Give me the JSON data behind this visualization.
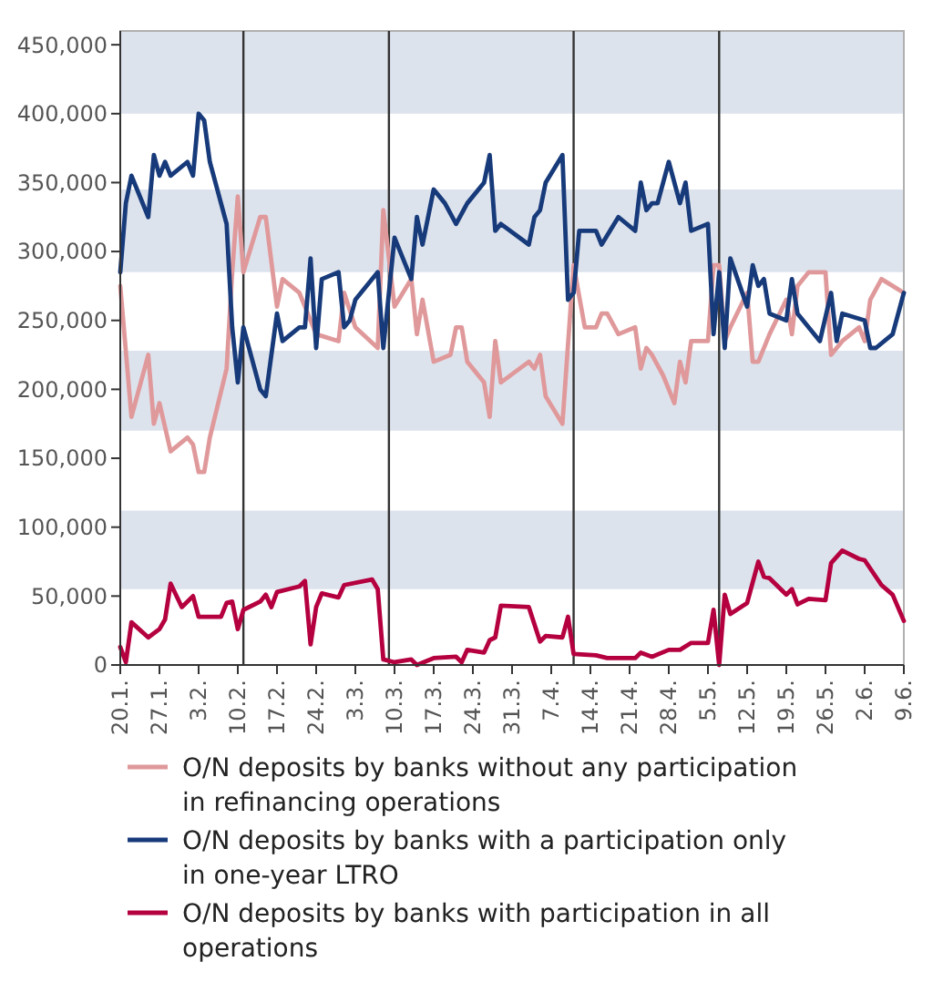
{
  "chart_data": {
    "type": "line",
    "xlim": [
      "--01-20",
      "--06-09"
    ],
    "ylim": [
      0,
      460000
    ],
    "xticks": [
      {
        "value": "--01-20",
        "label": "20.1."
      },
      {
        "value": "--01-27",
        "label": "27.1."
      },
      {
        "value": "--02-03",
        "label": "3.2."
      },
      {
        "value": "--02-10",
        "label": "10.2."
      },
      {
        "value": "--02-17",
        "label": "17.2."
      },
      {
        "value": "--02-24",
        "label": "24.2."
      },
      {
        "value": "--03-03",
        "label": "3.3."
      },
      {
        "value": "--03-10",
        "label": "10.3."
      },
      {
        "value": "--03-17",
        "label": "17.3."
      },
      {
        "value": "--03-24",
        "label": "24.3."
      },
      {
        "value": "--03-31",
        "label": "31.3."
      },
      {
        "value": "--04-07",
        "label": "7.4."
      },
      {
        "value": "--04-14",
        "label": "14.4."
      },
      {
        "value": "--04-21",
        "label": "21.4."
      },
      {
        "value": "--04-28",
        "label": "28.4."
      },
      {
        "value": "--05-05",
        "label": "5.5."
      },
      {
        "value": "--05-12",
        "label": "12.5."
      },
      {
        "value": "--05-19",
        "label": "19.5."
      },
      {
        "value": "--05-26",
        "label": "26.5."
      },
      {
        "value": "--06-02",
        "label": "2.6."
      },
      {
        "value": "--06-09",
        "label": "9.6."
      }
    ],
    "yticks": [
      {
        "value": 0,
        "label": "0"
      },
      {
        "value": 50000,
        "label": "50,000"
      },
      {
        "value": 100000,
        "label": "100,000"
      },
      {
        "value": 150000,
        "label": "150,000"
      },
      {
        "value": 200000,
        "label": "200,000"
      },
      {
        "value": 250000,
        "label": "250,000"
      },
      {
        "value": 300000,
        "label": "300,000"
      },
      {
        "value": 350000,
        "label": "350,000"
      },
      {
        "value": 400000,
        "label": "400,000"
      },
      {
        "value": 450000,
        "label": "450,000"
      }
    ],
    "bands": [
      {
        "axis": "y",
        "from": 55000,
        "to": 112000,
        "color": "#dde3ed"
      },
      {
        "axis": "y",
        "from": 170000,
        "to": 228000,
        "color": "#dde3ed"
      },
      {
        "axis": "y",
        "from": 285000,
        "to": 345000,
        "color": "#dde3ed"
      },
      {
        "axis": "y",
        "from": 400000,
        "to": 460000,
        "color": "#dde3ed"
      }
    ],
    "ref_lines": [
      {
        "axis": "x",
        "value": "--02-11",
        "color": "#333333"
      },
      {
        "axis": "x",
        "value": "--03-09",
        "color": "#333333"
      },
      {
        "axis": "x",
        "value": "--04-11",
        "color": "#333333"
      },
      {
        "axis": "x",
        "value": "--05-07",
        "color": "#333333"
      }
    ],
    "legend": "bottom",
    "line_style": "solid",
    "series": [
      {
        "name": "O/N deposits by banks without any participation in refinancing operations",
        "color": "#e0999b",
        "x": [
          "--01-20",
          "--01-22",
          "--01-25",
          "--01-26",
          "--01-27",
          "--01-29",
          "--02-01",
          "--02-02",
          "--02-03",
          "--02-04",
          "--02-05",
          "--02-08",
          "--02-09",
          "--02-10",
          "--02-11",
          "--02-14",
          "--02-15",
          "--02-17",
          "--02-18",
          "--02-21",
          "--02-24",
          "--02-28",
          "--03-01",
          "--03-03",
          "--03-07",
          "--03-08",
          "--03-10",
          "--03-13",
          "--03-14",
          "--03-15",
          "--03-17",
          "--03-20",
          "--03-21",
          "--03-22",
          "--03-23",
          "--03-26",
          "--03-27",
          "--03-28",
          "--03-29",
          "--04-03",
          "--04-04",
          "--04-05",
          "--04-06",
          "--04-09",
          "--04-11",
          "--04-13",
          "--04-15",
          "--04-16",
          "--04-17",
          "--04-19",
          "--04-22",
          "--04-23",
          "--04-24",
          "--04-25",
          "--04-27",
          "--04-29",
          "--04-30",
          "--05-01",
          "--05-02",
          "--05-05",
          "--05-06",
          "--05-07",
          "--05-08",
          "--05-09",
          "--05-12",
          "--05-13",
          "--05-14",
          "--05-16",
          "--05-19",
          "--05-20",
          "--05-21",
          "--05-23",
          "--05-26",
          "--05-27",
          "--05-29",
          "--06-01",
          "--06-02",
          "--06-03",
          "--06-05",
          "--06-07",
          "--06-09"
        ],
        "values": [
          275000,
          180000,
          225000,
          175000,
          190000,
          155000,
          165000,
          160000,
          140000,
          140000,
          165000,
          215000,
          285000,
          340000,
          285000,
          325000,
          325000,
          260000,
          280000,
          270000,
          240000,
          235000,
          270000,
          245000,
          230000,
          330000,
          260000,
          280000,
          240000,
          265000,
          220000,
          225000,
          245000,
          245000,
          220000,
          205000,
          180000,
          235000,
          205000,
          220000,
          215000,
          225000,
          195000,
          175000,
          290000,
          245000,
          245000,
          255000,
          255000,
          240000,
          245000,
          215000,
          230000,
          225000,
          210000,
          190000,
          220000,
          205000,
          235000,
          235000,
          290000,
          290000,
          235000,
          245000,
          270000,
          220000,
          220000,
          240000,
          265000,
          240000,
          275000,
          285000,
          285000,
          225000,
          235000,
          245000,
          235000,
          265000,
          280000,
          275000,
          270000
        ]
      },
      {
        "name": "O/N deposits by banks with a participation only in one-year LTRO",
        "color": "#173a7a",
        "x": [
          "--01-20",
          "--01-21",
          "--01-22",
          "--01-25",
          "--01-26",
          "--01-27",
          "--01-28",
          "--01-29",
          "--02-01",
          "--02-02",
          "--02-03",
          "--02-04",
          "--02-05",
          "--02-08",
          "--02-09",
          "--02-10",
          "--02-11",
          "--02-14",
          "--02-15",
          "--02-17",
          "--02-18",
          "--02-21",
          "--02-22",
          "--02-23",
          "--02-24",
          "--02-25",
          "--02-28",
          "--03-01",
          "--03-02",
          "--03-03",
          "--03-07",
          "--03-08",
          "--03-10",
          "--03-13",
          "--03-14",
          "--03-15",
          "--03-17",
          "--03-19",
          "--03-21",
          "--03-23",
          "--03-26",
          "--03-27",
          "--03-28",
          "--03-29",
          "--04-03",
          "--04-04",
          "--04-05",
          "--04-06",
          "--04-09",
          "--04-10",
          "--04-11",
          "--04-12",
          "--04-15",
          "--04-16",
          "--04-19",
          "--04-22",
          "--04-23",
          "--04-24",
          "--04-25",
          "--04-26",
          "--04-28",
          "--04-30",
          "--05-01",
          "--05-02",
          "--05-05",
          "--05-06",
          "--05-07",
          "--05-08",
          "--05-09",
          "--05-12",
          "--05-13",
          "--05-14",
          "--05-15",
          "--05-16",
          "--05-19",
          "--05-20",
          "--05-21",
          "--05-25",
          "--05-27",
          "--05-28",
          "--05-29",
          "--06-02",
          "--06-03",
          "--06-04",
          "--06-07",
          "--06-09"
        ],
        "values": [
          285000,
          335000,
          355000,
          325000,
          370000,
          355000,
          365000,
          355000,
          365000,
          355000,
          400000,
          395000,
          365000,
          320000,
          245000,
          205000,
          245000,
          200000,
          195000,
          255000,
          235000,
          245000,
          245000,
          295000,
          230000,
          280000,
          285000,
          245000,
          250000,
          265000,
          285000,
          230000,
          310000,
          280000,
          325000,
          305000,
          345000,
          335000,
          320000,
          335000,
          350000,
          370000,
          315000,
          320000,
          305000,
          325000,
          330000,
          350000,
          370000,
          265000,
          270000,
          315000,
          315000,
          305000,
          325000,
          315000,
          350000,
          330000,
          335000,
          335000,
          365000,
          335000,
          350000,
          315000,
          320000,
          240000,
          285000,
          230000,
          295000,
          260000,
          290000,
          275000,
          280000,
          255000,
          250000,
          280000,
          255000,
          235000,
          270000,
          235000,
          255000,
          250000,
          230000,
          230000,
          240000,
          270000
        ]
      },
      {
        "name": "O/N deposits by banks with participation in all operations",
        "color": "#b5003f",
        "x": [
          "--01-20",
          "--01-21",
          "--01-22",
          "--01-25",
          "--01-27",
          "--01-28",
          "--01-29",
          "--01-31",
          "--02-02",
          "--02-03",
          "--02-07",
          "--02-08",
          "--02-09",
          "--02-10",
          "--02-11",
          "--02-14",
          "--02-15",
          "--02-16",
          "--02-17",
          "--02-21",
          "--02-22",
          "--02-23",
          "--02-24",
          "--02-25",
          "--02-28",
          "--03-01",
          "--03-06",
          "--03-07",
          "--03-08",
          "--03-10",
          "--03-13",
          "--03-14",
          "--03-17",
          "--03-21",
          "--03-22",
          "--03-23",
          "--03-26",
          "--03-27",
          "--03-28",
          "--03-29",
          "--04-03",
          "--04-05",
          "--04-06",
          "--04-09",
          "--04-10",
          "--04-11",
          "--04-15",
          "--04-17",
          "--04-22",
          "--04-23",
          "--04-25",
          "--04-28",
          "--04-30",
          "--05-02",
          "--05-05",
          "--05-06",
          "--05-07",
          "--05-08",
          "--05-09",
          "--05-12",
          "--05-14",
          "--05-15",
          "--05-16",
          "--05-19",
          "--05-20",
          "--05-21",
          "--05-23",
          "--05-26",
          "--05-27",
          "--05-29",
          "--06-01",
          "--06-02",
          "--06-05",
          "--06-07",
          "--06-09"
        ],
        "values": [
          13000,
          2000,
          31000,
          20000,
          26000,
          33000,
          59000,
          42000,
          50000,
          35000,
          35000,
          45000,
          46000,
          26000,
          40000,
          46000,
          51000,
          42000,
          53000,
          57000,
          61000,
          15000,
          42000,
          52000,
          49000,
          58000,
          62000,
          55000,
          4000,
          2000,
          4000,
          0,
          5000,
          6000,
          2000,
          11000,
          9000,
          18000,
          20000,
          43000,
          42000,
          17000,
          21000,
          20000,
          35000,
          8000,
          7000,
          5000,
          5000,
          9000,
          6000,
          11000,
          11000,
          16000,
          16000,
          40000,
          0,
          51000,
          37000,
          45000,
          75000,
          64000,
          63000,
          51000,
          55000,
          44000,
          48000,
          47000,
          74000,
          83000,
          77000,
          76000,
          58000,
          51000,
          32000
        ]
      }
    ]
  }
}
